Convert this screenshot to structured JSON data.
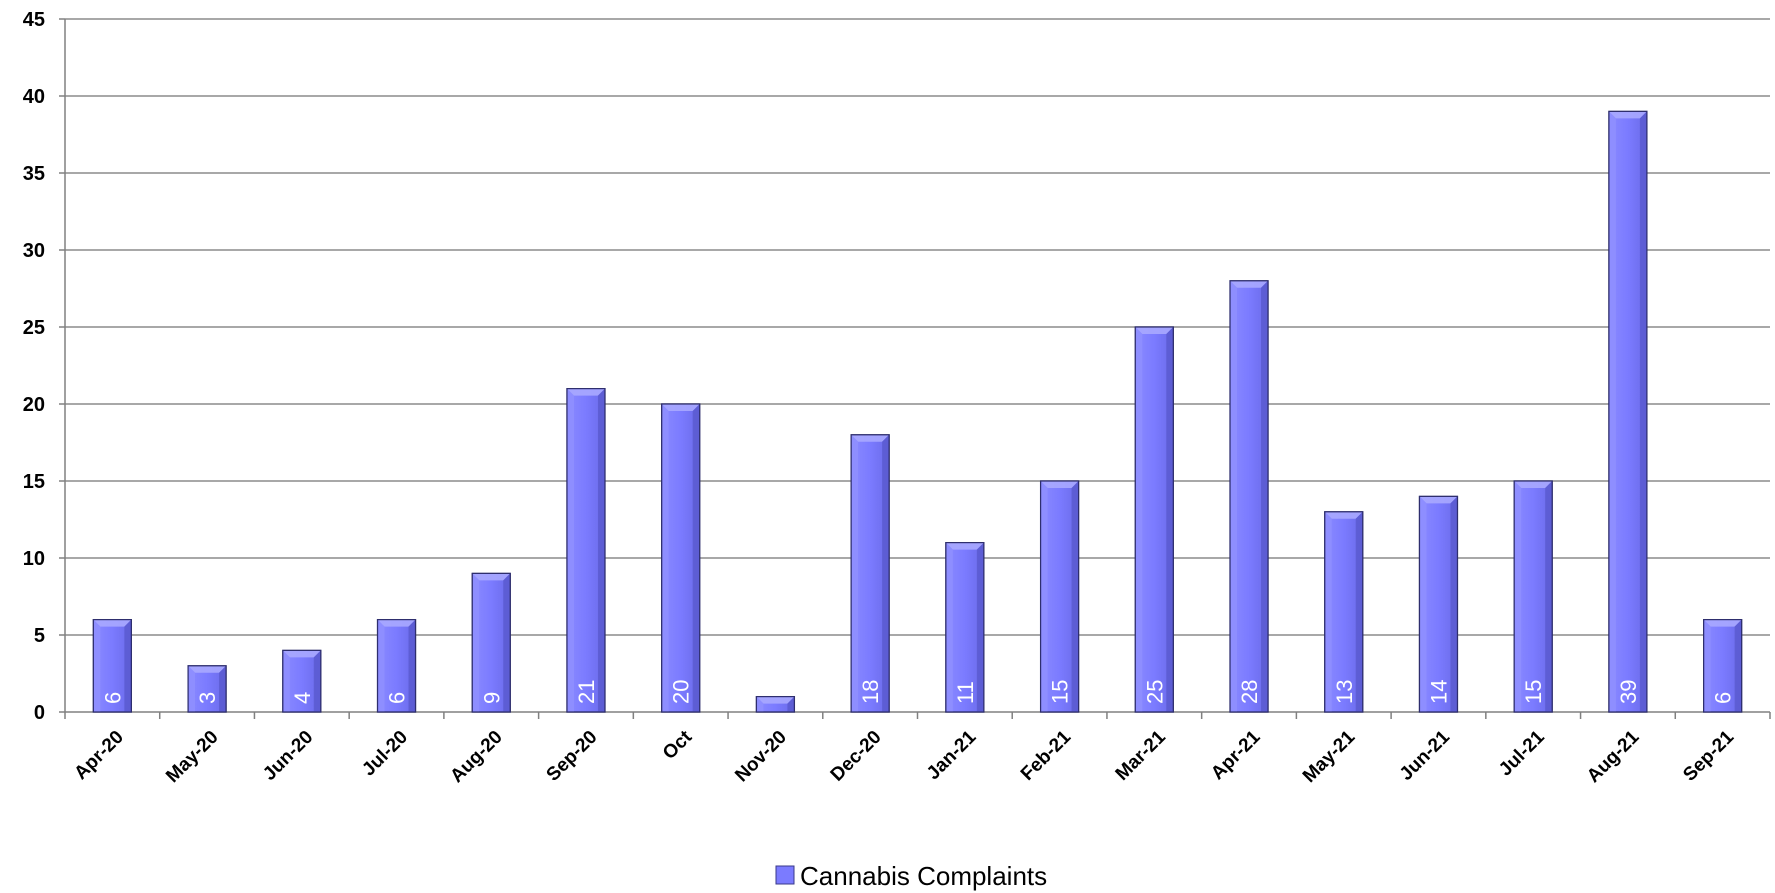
{
  "chart_data": {
    "type": "bar",
    "categories": [
      "Apr-20",
      "May-20",
      "Jun-20",
      "Jul-20",
      "Aug-20",
      "Sep-20",
      "Oct",
      "Nov-20",
      "Dec-20",
      "Jan-21",
      "Feb-21",
      "Mar-21",
      "Apr-21",
      "May-21",
      "Jun-21",
      "Jul-21",
      "Aug-21",
      "Sep-21"
    ],
    "series": [
      {
        "name": "Cannabis Complaints",
        "values": [
          6,
          3,
          4,
          6,
          9,
          21,
          20,
          1,
          18,
          11,
          15,
          25,
          28,
          13,
          14,
          15,
          39,
          6
        ],
        "data_labels": [
          "6",
          "3",
          "4",
          "6",
          "9",
          "21",
          "20",
          "",
          "18",
          "11",
          "15",
          "25",
          "28",
          "13",
          "14",
          "15",
          "39",
          "6"
        ],
        "color": "#7b7bff"
      }
    ],
    "ylim": [
      0,
      45
    ],
    "yticks": [
      0,
      5,
      10,
      15,
      20,
      25,
      30,
      35,
      40,
      45
    ],
    "grid": true,
    "legend_position": "bottom"
  }
}
